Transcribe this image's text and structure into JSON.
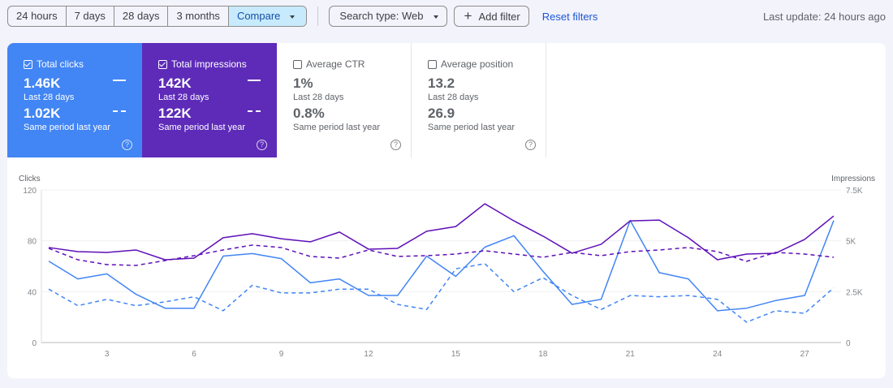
{
  "toolbar": {
    "ranges": [
      "24 hours",
      "7 days",
      "28 days",
      "3 months"
    ],
    "compare": "Compare",
    "search_type": "Search type: Web",
    "add_filter": "Add filter",
    "reset": "Reset filters",
    "last_update": "Last update: 24 hours ago"
  },
  "cards": [
    {
      "title": "Total clicks",
      "checked": true,
      "value": "1.46K",
      "period": "Last 28 days",
      "value2": "1.02K",
      "period2": "Same period last year",
      "color": "#4285f4"
    },
    {
      "title": "Total impressions",
      "checked": true,
      "value": "142K",
      "period": "Last 28 days",
      "value2": "122K",
      "period2": "Same period last year",
      "color": "#5e2bb8"
    },
    {
      "title": "Average CTR",
      "checked": false,
      "value": "1%",
      "period": "Last 28 days",
      "value2": "0.8%",
      "period2": "Same period last year"
    },
    {
      "title": "Average position",
      "checked": false,
      "value": "13.2",
      "period": "Last 28 days",
      "value2": "26.9",
      "period2": "Same period last year"
    }
  ],
  "chart_data": {
    "type": "line",
    "ylabel": "Clicks",
    "y2label": "Impressions",
    "ylim": [
      0,
      120
    ],
    "y2lim": [
      0,
      7500
    ],
    "yticks": [
      "0",
      "40",
      "80",
      "120"
    ],
    "y2ticks": [
      "0",
      "2.5K",
      "5K",
      "7.5K"
    ],
    "xticks": [
      "3",
      "6",
      "9",
      "12",
      "15",
      "18",
      "21",
      "24",
      "27"
    ],
    "x": [
      1,
      2,
      3,
      4,
      5,
      6,
      7,
      8,
      9,
      10,
      11,
      12,
      13,
      14,
      15,
      16,
      17,
      18,
      19,
      20,
      21,
      22,
      23,
      24,
      25,
      26,
      27,
      28
    ],
    "grid": true,
    "series": [
      {
        "axis": "left",
        "style": "solid",
        "color": "#4285f4",
        "values": [
          64,
          50,
          54,
          38,
          27,
          27,
          68,
          70,
          66,
          47,
          50,
          37,
          37,
          68,
          52,
          75,
          84,
          56,
          30,
          34,
          96,
          55,
          50,
          25,
          27,
          33,
          37,
          96
        ]
      },
      {
        "axis": "left",
        "style": "dashed",
        "color": "#4285f4",
        "values": [
          42,
          29,
          34,
          29,
          32,
          36,
          25,
          45,
          39,
          39,
          42,
          42,
          30,
          26,
          58,
          62,
          40,
          51,
          37,
          26,
          37,
          36,
          37,
          34,
          16,
          25,
          23,
          43
        ]
      },
      {
        "axis": "right",
        "style": "solid",
        "color": "#5e0fb8",
        "values": [
          4670,
          4470,
          4430,
          4550,
          4070,
          4150,
          5150,
          5350,
          5100,
          4950,
          5430,
          4590,
          4630,
          5470,
          5700,
          6820,
          5980,
          5230,
          4390,
          4830,
          5980,
          6020,
          5150,
          4070,
          4350,
          4390,
          5070,
          6220
        ]
      },
      {
        "axis": "right",
        "style": "dashed",
        "color": "#5e0fb8",
        "values": [
          4630,
          4070,
          3830,
          3790,
          4030,
          4270,
          4550,
          4790,
          4670,
          4230,
          4150,
          4550,
          4230,
          4270,
          4350,
          4510,
          4350,
          4190,
          4430,
          4270,
          4470,
          4550,
          4670,
          4470,
          3990,
          4430,
          4350,
          4190
        ]
      }
    ]
  }
}
